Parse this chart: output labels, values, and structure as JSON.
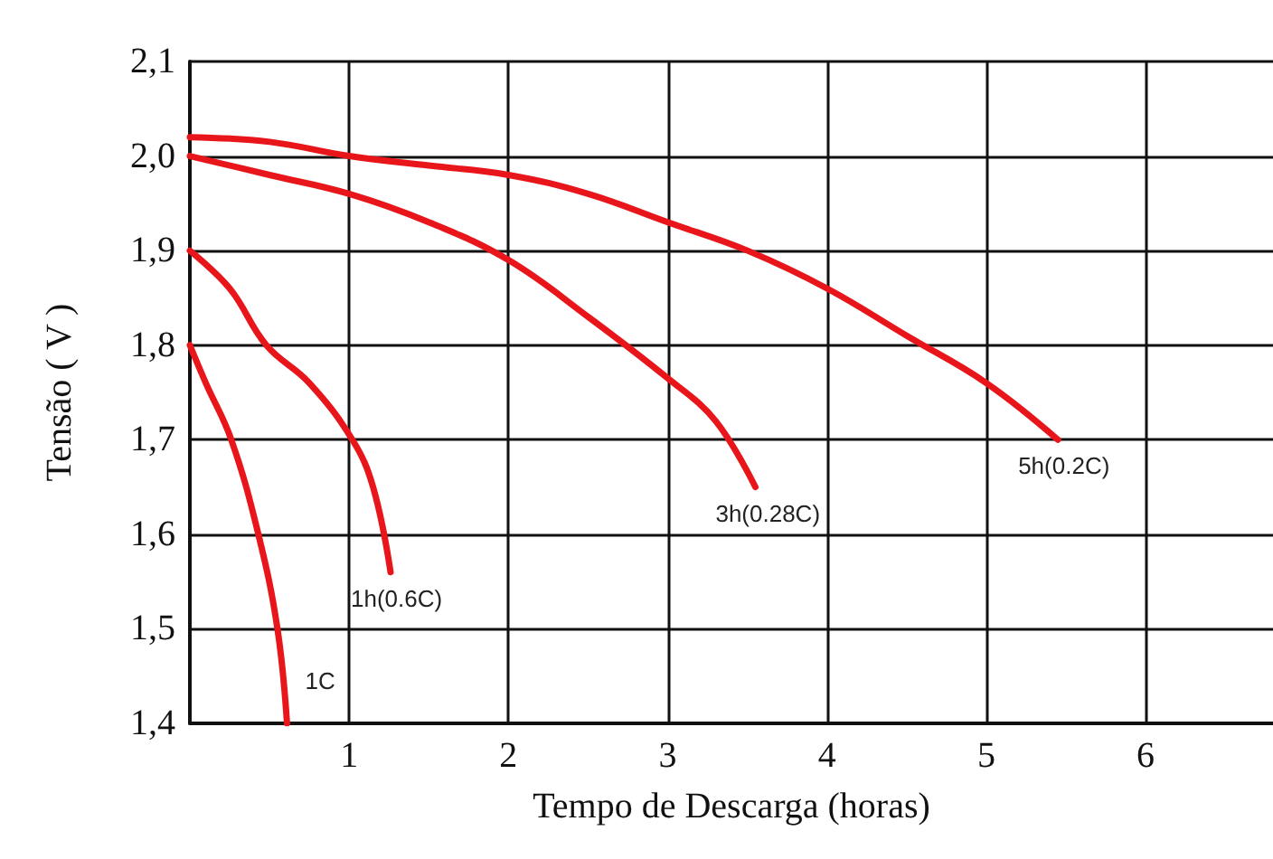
{
  "chart_data": {
    "type": "line",
    "xlabel": "Tempo de Descarga (horas)",
    "ylabel": "Tensão ( V )",
    "xlim": [
      0,
      6.8
    ],
    "ylim": [
      1.4,
      2.1
    ],
    "xticks": [
      {
        "value": 0,
        "label": null
      },
      1,
      2,
      3,
      4,
      5,
      6
    ],
    "yticks": [
      {
        "value": 1.4,
        "label": "1,4"
      },
      {
        "value": 1.5,
        "label": "1,5"
      },
      {
        "value": 1.6,
        "label": "1,6"
      },
      {
        "value": 1.7,
        "label": "1,7"
      },
      {
        "value": 1.8,
        "label": "1,8"
      },
      {
        "value": 1.9,
        "label": "1,9"
      },
      {
        "value": 2.0,
        "label": "2,0"
      },
      {
        "value": 2.1,
        "label": "2,1"
      }
    ],
    "grid": true,
    "legend": false,
    "marker": "none",
    "line_style": "solid",
    "series": [
      {
        "name": "1C",
        "color": "#e8161b",
        "x": [
          0,
          0.1,
          0.26,
          0.43,
          0.55,
          0.61
        ],
        "values": [
          1.8,
          1.76,
          1.7,
          1.6,
          1.5,
          1.4
        ]
      },
      {
        "name": "1h(0.6C)",
        "color": "#e8161b",
        "x": [
          0,
          0.25,
          0.48,
          0.75,
          1.02,
          1.15,
          1.26
        ],
        "values": [
          1.9,
          1.86,
          1.8,
          1.76,
          1.7,
          1.65,
          1.56
        ]
      },
      {
        "name": "3h(0.28C)",
        "color": "#e8161b",
        "x": [
          0,
          0.5,
          1,
          1.5,
          2,
          2.5,
          3,
          3.3,
          3.55
        ],
        "values": [
          2.0,
          1.98,
          1.96,
          1.93,
          1.89,
          1.83,
          1.765,
          1.72,
          1.65
        ]
      },
      {
        "name": "5h(0.2C)",
        "color": "#e8161b",
        "x": [
          0,
          0.5,
          1,
          1.5,
          2,
          2.5,
          3,
          3.5,
          4,
          4.5,
          5,
          5.45
        ],
        "values": [
          2.02,
          2.015,
          2.0,
          1.99,
          1.98,
          1.96,
          1.93,
          1.9,
          1.86,
          1.81,
          1.76,
          1.7
        ]
      }
    ]
  }
}
